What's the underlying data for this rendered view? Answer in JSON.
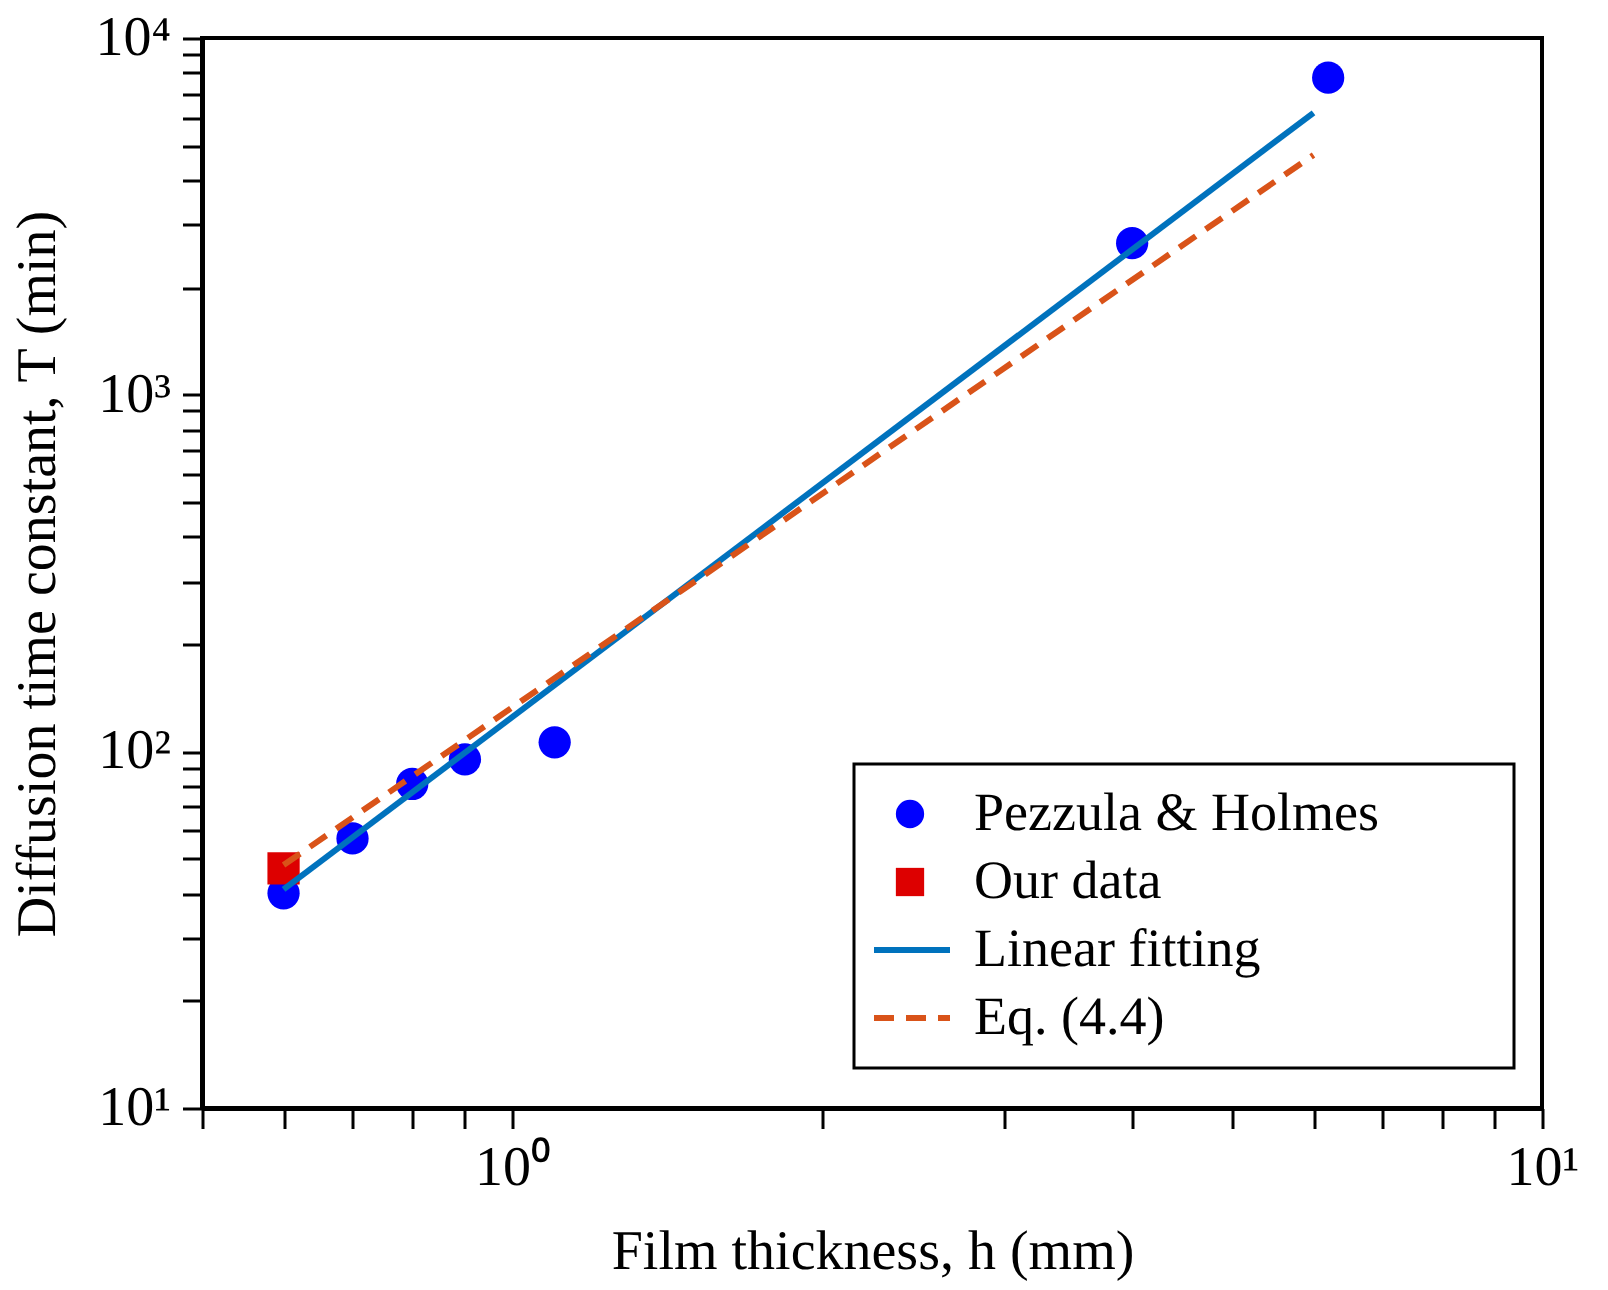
{
  "chart_data": {
    "type": "scatter",
    "xlabel": "Film thickness, h (mm)",
    "ylabel": "Diffusion time constant, T (min)",
    "log": "xy",
    "xlim": [
      0.5,
      10
    ],
    "ylim": [
      10,
      10000
    ],
    "xticks": [
      {
        "value": 0.5,
        "label": null
      },
      {
        "value": 0.6,
        "label": null
      },
      {
        "value": 0.7,
        "label": null
      },
      {
        "value": 0.8,
        "label": null
      },
      {
        "value": 0.9,
        "label": null
      },
      {
        "value": 1,
        "label": "10⁰"
      },
      {
        "value": 2,
        "label": null
      },
      {
        "value": 3,
        "label": null
      },
      {
        "value": 4,
        "label": null
      },
      {
        "value": 5,
        "label": null
      },
      {
        "value": 6,
        "label": null
      },
      {
        "value": 7,
        "label": null
      },
      {
        "value": 8,
        "label": null
      },
      {
        "value": 9,
        "label": null
      },
      {
        "value": 10,
        "label": "10¹"
      }
    ],
    "yticks": [
      {
        "value": 10,
        "label": "10¹"
      },
      {
        "value": 20,
        "label": null
      },
      {
        "value": 30,
        "label": null
      },
      {
        "value": 40,
        "label": null
      },
      {
        "value": 50,
        "label": null
      },
      {
        "value": 60,
        "label": null
      },
      {
        "value": 70,
        "label": null
      },
      {
        "value": 80,
        "label": null
      },
      {
        "value": 90,
        "label": null
      },
      {
        "value": 100,
        "label": "10²"
      },
      {
        "value": 200,
        "label": null
      },
      {
        "value": 300,
        "label": null
      },
      {
        "value": 400,
        "label": null
      },
      {
        "value": 500,
        "label": null
      },
      {
        "value": 600,
        "label": null
      },
      {
        "value": 700,
        "label": null
      },
      {
        "value": 800,
        "label": null
      },
      {
        "value": 900,
        "label": null
      },
      {
        "value": 1000,
        "label": "10³"
      },
      {
        "value": 2000,
        "label": null
      },
      {
        "value": 3000,
        "label": null
      },
      {
        "value": 4000,
        "label": null
      },
      {
        "value": 5000,
        "label": null
      },
      {
        "value": 6000,
        "label": null
      },
      {
        "value": 7000,
        "label": null
      },
      {
        "value": 8000,
        "label": null
      },
      {
        "value": 9000,
        "label": null
      },
      {
        "value": 10000,
        "label": "10⁴"
      }
    ],
    "grid": false,
    "legend": "bottom right",
    "series": [
      {
        "name": "Pezzula & Holmes",
        "type": "scatter",
        "marker": "circle",
        "color": "#0000ff",
        "x": [
          0.6,
          0.7,
          0.8,
          0.9,
          1.1,
          4.0,
          6.2
        ],
        "values": [
          40,
          57,
          81,
          95,
          106,
          2660,
          7740
        ]
      },
      {
        "name": "Our data",
        "type": "scatter",
        "marker": "square",
        "color": "#dd0000",
        "x": [
          0.6
        ],
        "values": [
          47
        ]
      },
      {
        "name": "Linear fitting",
        "type": "line",
        "line_style": "solid",
        "color": "#0072bd",
        "x": [
          0.6,
          6.0
        ],
        "values": [
          41,
          6170
        ]
      },
      {
        "name": "Eq. (4.4)",
        "type": "line",
        "line_style": "dashed",
        "color": "#d95319",
        "x": [
          0.6,
          6.0
        ],
        "values": [
          48,
          4700
        ]
      }
    ]
  }
}
